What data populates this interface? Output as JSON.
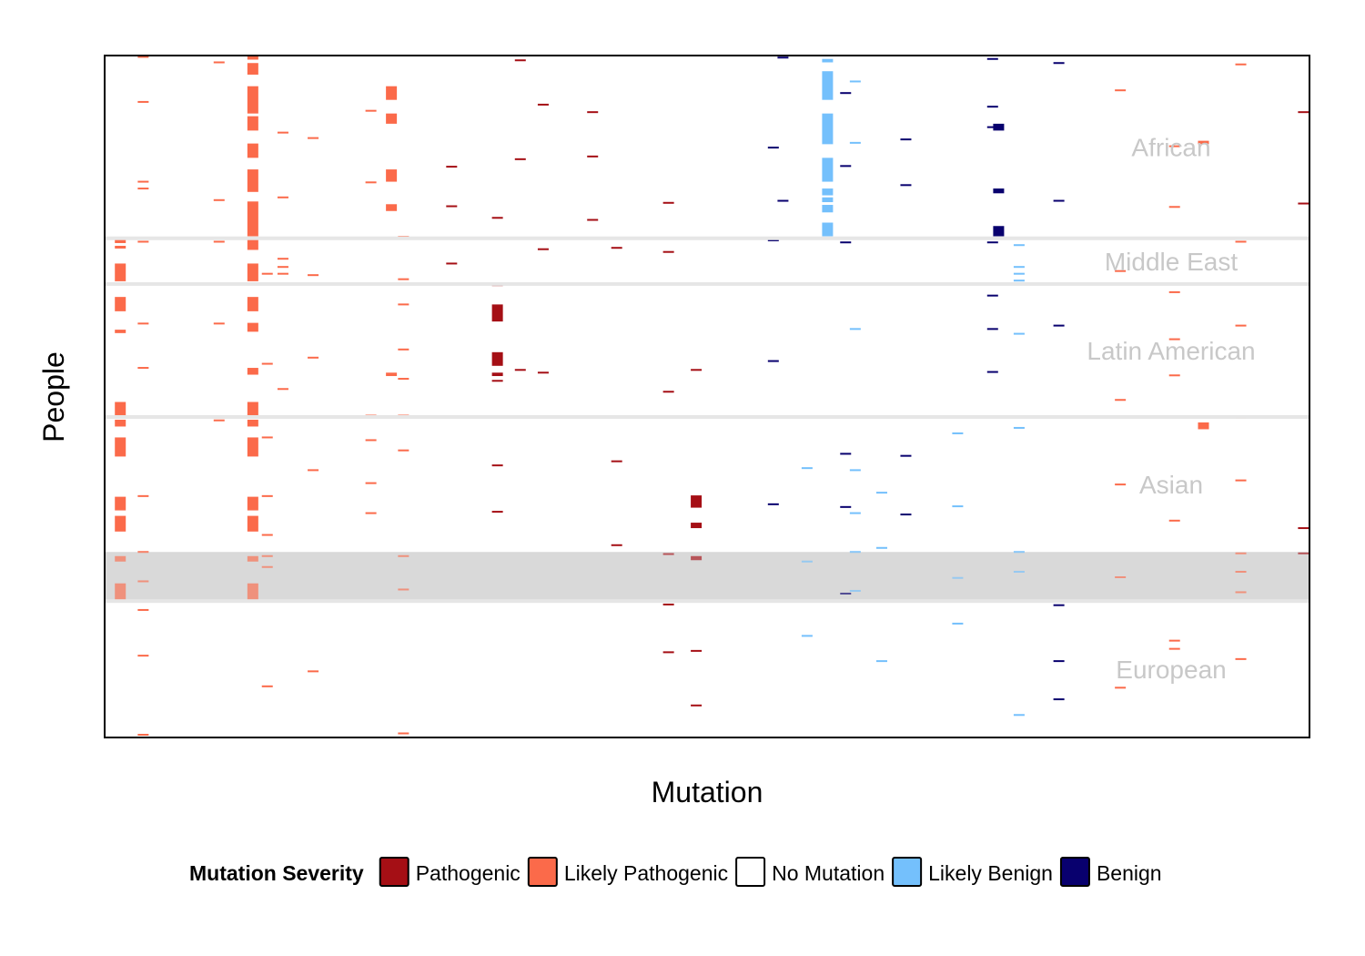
{
  "chart_data": {
    "type": "heatmap",
    "title": "",
    "xlabel": "Mutation",
    "ylabel": "People",
    "x_tick_labels": "none",
    "y_tick_labels": "none",
    "grid": false,
    "legend": {
      "placement": "bottom",
      "title": "Mutation Severity",
      "entries": [
        {
          "key": "P",
          "label": "Pathogenic",
          "color": "#a50f15"
        },
        {
          "key": "LP",
          "label": "Likely Pathogenic",
          "color": "#fb6a4a"
        },
        {
          "key": "N",
          "label": "No Mutation",
          "color": "#ffffff"
        },
        {
          "key": "LB",
          "label": "Likely Benign",
          "color": "#74c0fc"
        },
        {
          "key": "B",
          "label": "Benign",
          "color": "#08006e"
        }
      ]
    },
    "people_axis_range": [
      0,
      100
    ],
    "mutation_axis_range": [
      0,
      100
    ],
    "groups": [
      {
        "label": "African",
        "range": [
          0,
          26.8
        ],
        "highlighted": false
      },
      {
        "label": "Middle East",
        "range": [
          26.8,
          33.5
        ],
        "highlighted": false
      },
      {
        "label": "Latin American",
        "range": [
          33.5,
          53
        ],
        "highlighted": false
      },
      {
        "label": "Asian",
        "range": [
          53,
          72.8
        ],
        "highlighted": true,
        "highlight_range": [
          72.8,
          80
        ]
      },
      {
        "label": "European",
        "range": [
          80,
          100
        ],
        "highlighted": false
      }
    ],
    "dense_columns": [
      {
        "x": 1.3,
        "severity": "LP",
        "segments": [
          [
            26.7,
            27.5
          ],
          [
            27.9,
            28.3
          ],
          [
            30.5,
            33.1
          ],
          [
            35.4,
            37.5
          ],
          [
            40.2,
            40.7
          ],
          [
            50.8,
            52.8
          ],
          [
            53.4,
            54.4
          ],
          [
            56,
            58.8
          ],
          [
            64.7,
            66.7
          ],
          [
            67.5,
            69.8
          ],
          [
            73.4,
            74.2
          ],
          [
            77.4,
            80
          ]
        ]
      },
      {
        "x": 12.3,
        "severity": "LP",
        "segments": [
          [
            0,
            0.6
          ],
          [
            1.1,
            2.8
          ],
          [
            4.5,
            8.5
          ],
          [
            8.9,
            11
          ],
          [
            12.9,
            15
          ],
          [
            16.7,
            20
          ],
          [
            21.4,
            26.5
          ],
          [
            26.7,
            28.5
          ],
          [
            30.5,
            33.1
          ],
          [
            35.4,
            37.5
          ],
          [
            39.2,
            40.5
          ],
          [
            45.8,
            46.8
          ],
          [
            50.8,
            52.8
          ],
          [
            53.4,
            54.4
          ],
          [
            56,
            58.8
          ],
          [
            64.7,
            66.7
          ],
          [
            67.5,
            69.8
          ],
          [
            73.4,
            74.2
          ],
          [
            77.4,
            80
          ]
        ]
      },
      {
        "x": 23.8,
        "severity": "LP",
        "segments": [
          [
            4.5,
            6.5
          ],
          [
            8.5,
            10
          ],
          [
            16.7,
            18.5
          ],
          [
            21.8,
            22.8
          ],
          [
            46.5,
            47
          ]
        ]
      },
      {
        "x": 32.6,
        "severity": "P",
        "segments": [
          [
            33.3,
            33.8
          ],
          [
            36.5,
            39
          ],
          [
            43.5,
            45.5
          ],
          [
            46.5,
            47
          ]
        ]
      },
      {
        "x": 49.1,
        "severity": "P",
        "segments": [
          [
            64.5,
            66.3
          ],
          [
            68.5,
            69.3
          ],
          [
            73.4,
            74
          ]
        ]
      },
      {
        "x": 60,
        "severity": "LB",
        "segments": [
          [
            0.5,
            1
          ],
          [
            2.3,
            6.5
          ],
          [
            8.5,
            13
          ],
          [
            15,
            18.5
          ],
          [
            19.5,
            20.5
          ],
          [
            20.8,
            21.5
          ],
          [
            21.9,
            23
          ],
          [
            24.5,
            26.5
          ]
        ]
      },
      {
        "x": 74.2,
        "severity": "B",
        "segments": [
          [
            10,
            11
          ],
          [
            19.5,
            20.2
          ],
          [
            25,
            26.5
          ]
        ]
      },
      {
        "x": 91.2,
        "severity": "LP",
        "segments": [
          [
            12.5,
            13
          ],
          [
            53.8,
            54.8
          ]
        ]
      }
    ],
    "sparse_marks": [
      {
        "x": 3.2,
        "y": [
          0.2,
          6.8,
          18.5,
          19.5,
          27.3,
          39.3,
          45.8,
          64.6,
          72.8,
          77.1,
          81.3,
          88,
          99.6
        ],
        "severity": "LP"
      },
      {
        "x": 9.5,
        "y": [
          1,
          21.2,
          27.3,
          39.3,
          53.5
        ],
        "severity": "LP"
      },
      {
        "x": 13.5,
        "y": [
          32,
          45.2,
          56,
          64.6,
          70.3,
          73.4,
          75,
          92.5
        ],
        "severity": "LP"
      },
      {
        "x": 14.8,
        "y": [
          11.3,
          20.8,
          29.8,
          31,
          32,
          48.9
        ],
        "severity": "LP"
      },
      {
        "x": 17.3,
        "y": [
          12.1,
          32.2,
          44.3,
          60.8,
          90.3
        ],
        "severity": "LP"
      },
      {
        "x": 22.1,
        "y": [
          8.1,
          18.6,
          52.8,
          56.4,
          62.7,
          67.1
        ],
        "severity": "LP"
      },
      {
        "x": 24.8,
        "y": [
          26.6,
          32.8,
          36.5,
          43.1,
          47.4,
          52.8,
          57.9,
          73.4,
          78.3,
          99.4
        ],
        "severity": "LP"
      },
      {
        "x": 28.8,
        "y": [
          16.3,
          22.1,
          30.5
        ],
        "severity": "P"
      },
      {
        "x": 32.6,
        "y": [
          23.8,
          47.7,
          60.1,
          66.9
        ],
        "severity": "P"
      },
      {
        "x": 34.5,
        "y": [
          0.7,
          15.2,
          46.1
        ],
        "severity": "P"
      },
      {
        "x": 36.4,
        "y": [
          7.2,
          28.4,
          46.5
        ],
        "severity": "P"
      },
      {
        "x": 40.5,
        "y": [
          8.3,
          14.8,
          24.1
        ],
        "severity": "P"
      },
      {
        "x": 42.5,
        "y": [
          28.2,
          59.5,
          71.8
        ],
        "severity": "P"
      },
      {
        "x": 46.8,
        "y": [
          21.6,
          28.8,
          49.3,
          73.1,
          80.5,
          87.5
        ],
        "severity": "P"
      },
      {
        "x": 49.1,
        "y": [
          46.1,
          80.1,
          87.3,
          95.3
        ],
        "severity": "P"
      },
      {
        "x": 55.5,
        "y": [
          13.5,
          27.1,
          44.8,
          65.8
        ],
        "severity": "B"
      },
      {
        "x": 56.3,
        "y": [
          0.3,
          21.3
        ],
        "severity": "B"
      },
      {
        "x": 58.3,
        "y": [
          60.5,
          74.2,
          85.1
        ],
        "severity": "LB"
      },
      {
        "x": 61.5,
        "y": [
          5.5,
          16.2,
          27.4,
          58.4,
          66.2,
          78.9
        ],
        "severity": "B"
      },
      {
        "x": 62.3,
        "y": [
          3.8,
          12.8,
          40.1,
          60.8,
          67.1,
          72.8,
          78.5
        ],
        "severity": "LB"
      },
      {
        "x": 64.5,
        "y": [
          64.1,
          72.2,
          88.8
        ],
        "severity": "LB"
      },
      {
        "x": 66.5,
        "y": [
          12.3,
          19,
          58.7,
          67.3
        ],
        "severity": "B"
      },
      {
        "x": 70.8,
        "y": [
          55.4,
          66.1,
          76.6,
          83.3
        ],
        "severity": "LB"
      },
      {
        "x": 73.7,
        "y": [
          0.5,
          7.5,
          10.5,
          27.4,
          35.2,
          40.1,
          46.4
        ],
        "severity": "B"
      },
      {
        "x": 75.9,
        "y": [
          27.8,
          31,
          32,
          33,
          40.8,
          54.6,
          72.8,
          75.7,
          96.7
        ],
        "severity": "LB"
      },
      {
        "x": 79.2,
        "y": [
          1.1,
          21.3,
          39.6,
          80.6,
          88.8,
          94.4
        ],
        "severity": "B"
      },
      {
        "x": 84.3,
        "y": [
          5.1,
          31.6,
          50.5,
          62.9,
          76.5,
          92.7
        ],
        "severity": "LP"
      },
      {
        "x": 88.8,
        "y": [
          13.3,
          22.2,
          34.7,
          41.6,
          46.9,
          68.2,
          85.8,
          87
        ],
        "severity": "LP"
      },
      {
        "x": 94.3,
        "y": [
          1.3,
          27.3,
          39.6,
          53.1,
          62.3,
          73,
          75.7,
          78.7,
          88.5
        ],
        "severity": "LP"
      },
      {
        "x": 99.5,
        "y": [
          8.3,
          21.7,
          69.3,
          73
        ],
        "severity": "P"
      }
    ]
  }
}
